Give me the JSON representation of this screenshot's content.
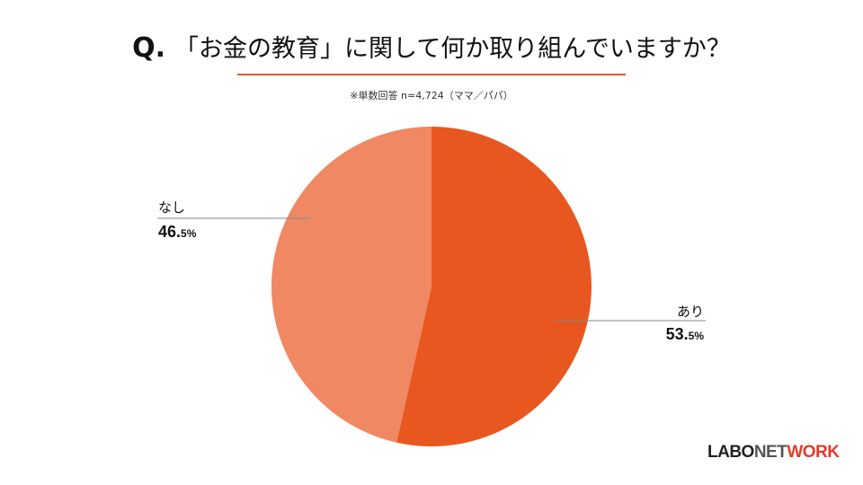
{
  "header": {
    "q_marker": "Q.",
    "question": "「お金の教育」に関して何か取り組んでいますか？",
    "note": "※単数回答 n=4,724（ママ／パパ）"
  },
  "chart_data": {
    "type": "pie",
    "start_angle_deg": 0,
    "direction": "clockwise",
    "slices": [
      {
        "label": "あり",
        "value": 53.5,
        "value_main": "53.",
        "value_small": "5%",
        "color": "#e8571f"
      },
      {
        "label": "なし",
        "value": 46.5,
        "value_main": "46.",
        "value_small": "5%",
        "color": "#ef8863"
      }
    ]
  },
  "brand": {
    "part1": "LABO",
    "part2": "NET",
    "part3": "WORK"
  }
}
